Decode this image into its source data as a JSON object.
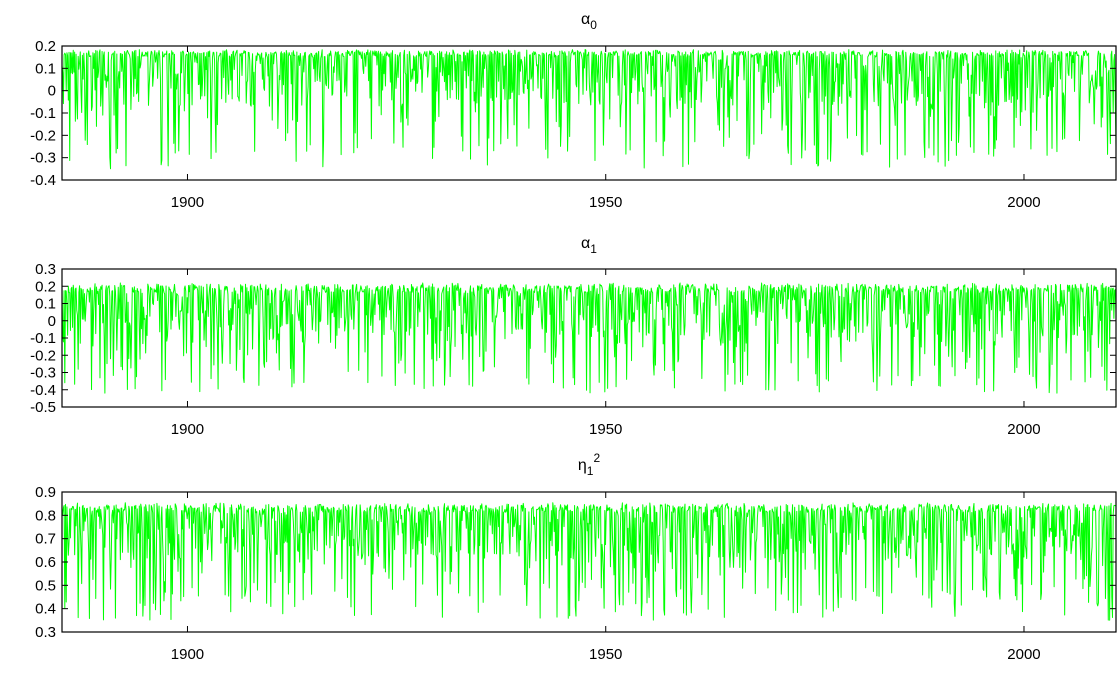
{
  "chart_data": [
    {
      "type": "line",
      "title": "α",
      "title_sub": "0",
      "title_sup": "",
      "xlim": [
        1885,
        2011
      ],
      "ylim": [
        -0.4,
        0.2
      ],
      "xticks": [
        1900,
        1950,
        2000
      ],
      "xtick_labels": [
        "1900",
        "1950",
        "2000"
      ],
      "yticks": [
        -0.4,
        -0.3,
        -0.2,
        -0.1,
        0,
        0.1,
        0.2
      ],
      "ytick_labels": [
        "-0.4",
        "-0.3",
        "-0.2",
        "-0.1",
        "0",
        "0.1",
        "0.2"
      ],
      "grid": false,
      "series": [
        {
          "color": "#00ff00",
          "baseline": 0.16,
          "high": 0.185,
          "dip_min": -0.35
        }
      ]
    },
    {
      "type": "line",
      "title": "α",
      "title_sub": "1",
      "title_sup": "",
      "xlim": [
        1885,
        2011
      ],
      "ylim": [
        -0.5,
        0.3
      ],
      "xticks": [
        1900,
        1950,
        2000
      ],
      "xtick_labels": [
        "1900",
        "1950",
        "2000"
      ],
      "yticks": [
        -0.5,
        -0.4,
        -0.3,
        -0.2,
        -0.1,
        0,
        0.1,
        0.2,
        0.3
      ],
      "ytick_labels": [
        "-0.5",
        "-0.4",
        "-0.3",
        "-0.2",
        "-0.1",
        "0",
        "0.1",
        "0.2",
        "0.3"
      ],
      "grid": false,
      "series": [
        {
          "color": "#00ff00",
          "baseline": 0.17,
          "high": 0.22,
          "dip_min": -0.42
        }
      ]
    },
    {
      "type": "line",
      "title": "η",
      "title_sub": "1",
      "title_sup": "2",
      "xlim": [
        1885,
        2011
      ],
      "ylim": [
        0.3,
        0.9
      ],
      "xticks": [
        1900,
        1950,
        2000
      ],
      "xtick_labels": [
        "1900",
        "1950",
        "2000"
      ],
      "yticks": [
        0.3,
        0.4,
        0.5,
        0.6,
        0.7,
        0.8,
        0.9
      ],
      "ytick_labels": [
        "0.3",
        "0.4",
        "0.5",
        "0.6",
        "0.7",
        "0.8",
        "0.9"
      ],
      "grid": false,
      "series": [
        {
          "color": "#00ff00",
          "baseline": 0.82,
          "high": 0.855,
          "dip_min": 0.35
        }
      ]
    }
  ]
}
